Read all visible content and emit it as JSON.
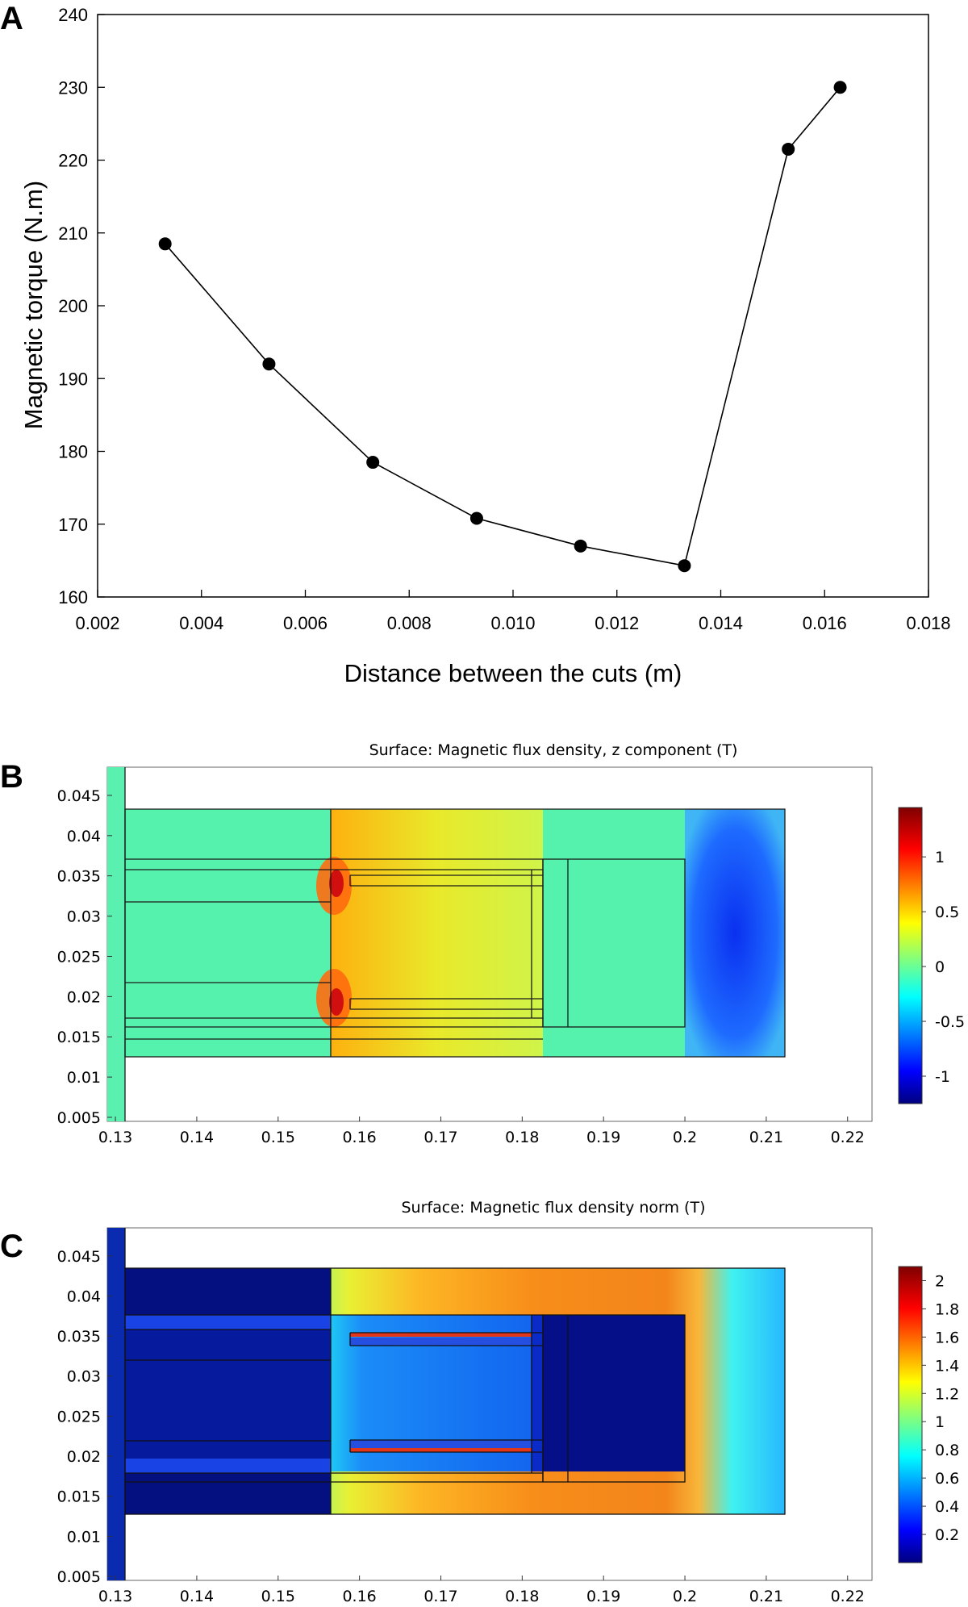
{
  "panel_labels": [
    "A",
    "B",
    "C"
  ],
  "chart_data": [
    {
      "type": "line",
      "panel": "A",
      "title": "",
      "xlabel": "Distance between the cuts (m)",
      "ylabel": "Magnetic torque (N.m)",
      "xlim": [
        0.002,
        0.018
      ],
      "ylim": [
        160,
        240
      ],
      "xticks": [
        "0.002",
        "0.004",
        "0.006",
        "0.008",
        "0.010",
        "0.012",
        "0.014",
        "0.016",
        "0.018"
      ],
      "yticks": [
        "160",
        "170",
        "180",
        "190",
        "200",
        "210",
        "220",
        "230",
        "240"
      ],
      "grid": false,
      "x": [
        0.0033,
        0.0053,
        0.0073,
        0.0093,
        0.0113,
        0.0133,
        0.0153,
        0.0163
      ],
      "y": [
        208.5,
        192,
        178.5,
        170.8,
        167,
        164.3,
        221.5,
        230
      ],
      "color": "#000000"
    },
    {
      "type": "heatmap",
      "panel": "B",
      "title": "Surface: Magnetic flux density, z component (T)",
      "xlim": [
        0.129,
        0.223
      ],
      "ylim": [
        0.0045,
        0.0485
      ],
      "xticks": [
        "0.13",
        "0.14",
        "0.15",
        "0.16",
        "0.17",
        "0.18",
        "0.19",
        "0.2",
        "0.21",
        "0.22"
      ],
      "yticks": [
        "0.005",
        "0.01",
        "0.015",
        "0.02",
        "0.025",
        "0.03",
        "0.035",
        "0.04",
        "0.045"
      ],
      "colorbar": {
        "min": -1.25,
        "max": 1.45,
        "ticks": [
          "1",
          "0.5",
          "0",
          "-0.5",
          "-1"
        ],
        "colormap": "jet"
      }
    },
    {
      "type": "heatmap",
      "panel": "C",
      "title": "Surface: Magnetic flux density norm (T)",
      "xlim": [
        0.129,
        0.223
      ],
      "ylim": [
        0.0045,
        0.0485
      ],
      "xticks": [
        "0.13",
        "0.14",
        "0.15",
        "0.16",
        "0.17",
        "0.18",
        "0.19",
        "0.2",
        "0.21",
        "0.22"
      ],
      "yticks": [
        "0.005",
        "0.01",
        "0.015",
        "0.02",
        "0.025",
        "0.03",
        "0.035",
        "0.04",
        "0.045"
      ],
      "colorbar": {
        "min": 0,
        "max": 2.1,
        "ticks": [
          "2",
          "1.8",
          "1.6",
          "1.4",
          "1.2",
          "1",
          "0.8",
          "0.6",
          "0.4",
          "0.2"
        ],
        "colormap": "jet"
      }
    }
  ]
}
